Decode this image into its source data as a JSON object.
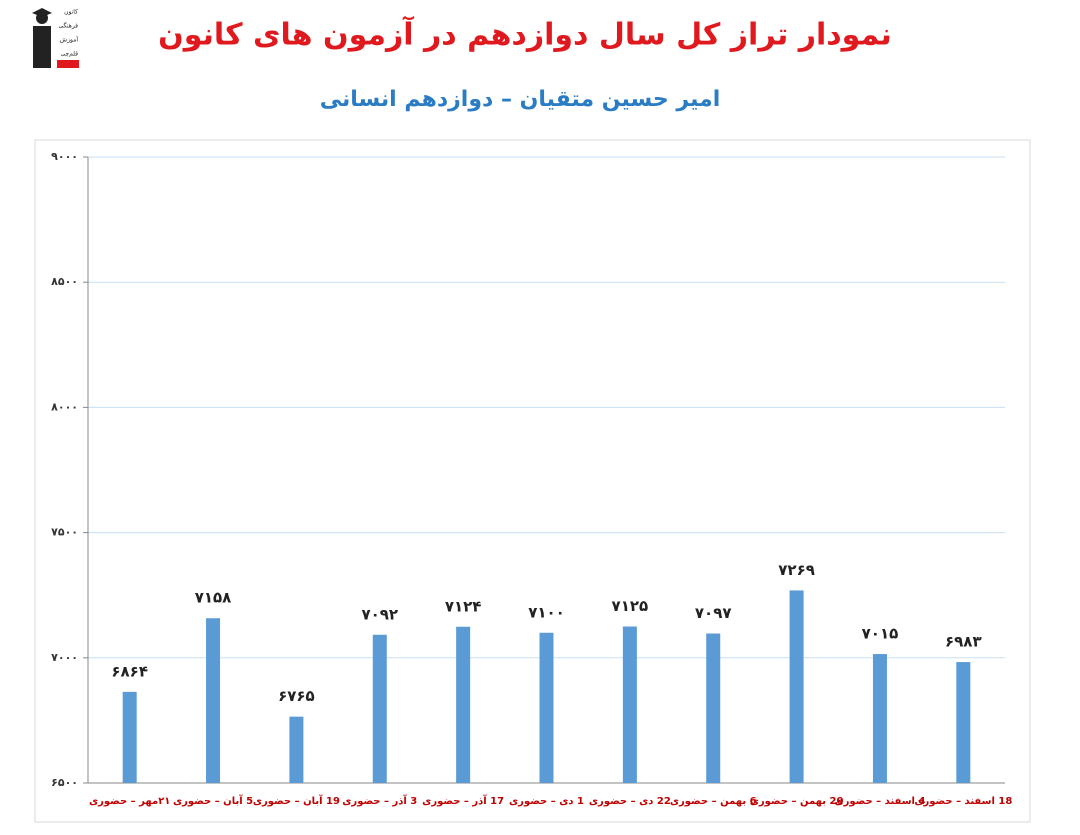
{
  "chart_data": {
    "type": "bar",
    "title": "نمودار تراز کل سال دوازدهم در آزمون های کانون",
    "subtitle": "امیر حسین متقیان – دوازدهم انسانی",
    "logo_lines": [
      "کانون",
      "فرهنگی",
      "آموزش",
      "قلم‌چی"
    ],
    "categories": [
      "۲۱مهر – حضوری",
      "5 آبان – حضوری",
      "19 آبان – حضوری",
      "3 آذر – حضوری",
      "17 آذر – حضوری",
      "1 دی – حضوری",
      "22 دی – حضوری",
      "6 بهمن – حضوری",
      "20 بهمن – حضوری",
      "4 اسفند – حضوری",
      "18 اسفند – حضوری"
    ],
    "values": [
      6864,
      7158,
      6765,
      7092,
      7124,
      7100,
      7125,
      7097,
      7269,
      7015,
      6983
    ],
    "value_labels": [
      "۶۸۶۴",
      "۷۱۵۸",
      "۶۷۶۵",
      "۷۰۹۲",
      "۷۱۲۴",
      "۷۱۰۰",
      "۷۱۲۵",
      "۷۰۹۷",
      "۷۲۶۹",
      "۷۰۱۵",
      "۶۹۸۳"
    ],
    "color": "#5b9bd5",
    "ylim": [
      6500,
      9000
    ],
    "yticks": [
      {
        "value": 6500,
        "label": "۶۵۰۰"
      },
      {
        "value": 7000,
        "label": "۷۰۰۰"
      },
      {
        "value": 7500,
        "label": "۷۵۰۰"
      },
      {
        "value": 8000,
        "label": "۸۰۰۰"
      },
      {
        "value": 8500,
        "label": "۸۵۰۰"
      },
      {
        "value": 9000,
        "label": "۹۰۰۰"
      }
    ],
    "grid": true
  }
}
